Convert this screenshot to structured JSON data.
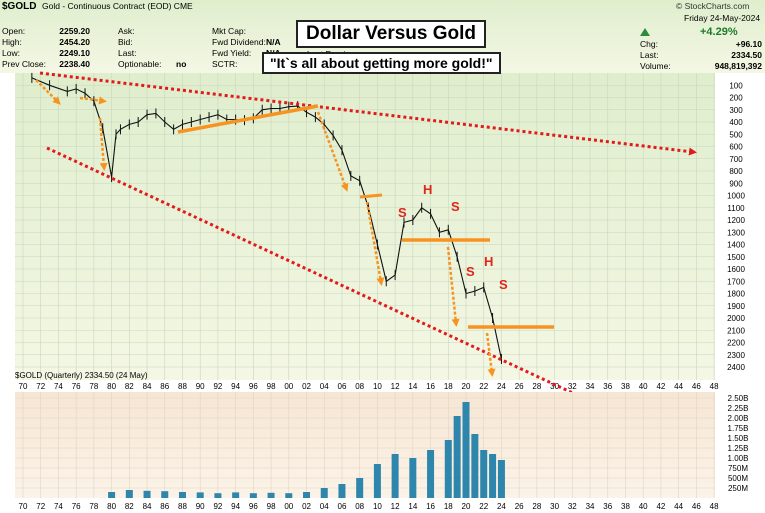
{
  "header": {
    "symbol": "$GOLD",
    "description": "Gold - Continuous Contract (EOD) CME",
    "watermark": "© StockCharts.com",
    "date_line": "Friday 24-May-2024",
    "stats_left": [
      {
        "label": "Open:",
        "value": "2259.20"
      },
      {
        "label": "High:",
        "value": "2454.20"
      },
      {
        "label": "Low:",
        "value": "2249.10"
      },
      {
        "label": "Prev Close:",
        "value": "2238.40"
      }
    ],
    "stats_mid": [
      {
        "label": "Ask:",
        "value": ""
      },
      {
        "label": "Bid:",
        "value": ""
      },
      {
        "label": "Last:",
        "value": ""
      },
      {
        "label": "Optionable:",
        "value": "no"
      }
    ],
    "stats_right": [
      {
        "label": "Mkt Cap:",
        "value": ""
      },
      {
        "label": "Fwd Dividend:",
        "value": "N/A"
      },
      {
        "label": "Fwd Yield:",
        "value": "N/A"
      },
      {
        "label": "SCTR:",
        "value": ""
      }
    ],
    "change_pct": "+4.29%",
    "stats_far": [
      {
        "label": "Chg:",
        "value": "+96.10"
      },
      {
        "label": "Last:",
        "value": "2334.50"
      },
      {
        "label": "Volume:",
        "value": "948,819,392"
      }
    ],
    "partial_label": "Last Earnings:"
  },
  "annotations": {
    "title": "Dollar Versus Gold",
    "quote": "\"It`s all about getting more gold!\"",
    "hs_letters": [
      "S",
      "H",
      "S",
      "S",
      "H",
      "S"
    ]
  },
  "legend": "$GOLD (Quarterly) 2334.50 (24 May)",
  "colors": {
    "price_panel_bg": "#e5f2d2",
    "volume_panel_bg": "#f7e9d6",
    "volume_bar": "#2e86ac",
    "trend_red": "#e11b1b",
    "support_orange": "#f7931e",
    "up_arrow": "#2e8b3a"
  },
  "chart_data": [
    {
      "type": "line",
      "title": "$GOLD (Quarterly) 2334.50 (24 May)",
      "y_axis_inverted": true,
      "y_ticks": [
        100,
        200,
        300,
        400,
        500,
        600,
        700,
        800,
        900,
        1000,
        1100,
        1200,
        1300,
        1400,
        1500,
        1600,
        1700,
        1800,
        1900,
        2000,
        2100,
        2200,
        2300,
        2400
      ],
      "x_ticks": [
        "70",
        "72",
        "74",
        "76",
        "78",
        "80",
        "82",
        "84",
        "86",
        "88",
        "90",
        "92",
        "94",
        "96",
        "98",
        "00",
        "02",
        "04",
        "06",
        "08",
        "10",
        "12",
        "14",
        "16",
        "18",
        "20",
        "22",
        "24",
        "26",
        "28",
        "30",
        "32",
        "34",
        "36",
        "38",
        "40",
        "42",
        "44",
        "46",
        "48"
      ],
      "series": [
        {
          "x": [
            1971,
            1973,
            1975,
            1976,
            1977,
            1978,
            1979,
            1980,
            1980.5,
            1981,
            1982,
            1983,
            1984,
            1985,
            1986,
            1987,
            1988,
            1989,
            1990,
            1991,
            1992,
            1993,
            1994,
            1995,
            1996,
            1997,
            1998,
            1999,
            2000,
            2001,
            2002,
            2003,
            2004,
            2005,
            2006,
            2007,
            2008,
            2009,
            2010,
            2011,
            2012,
            2013,
            2014,
            2015,
            2016,
            2017,
            2018,
            2019,
            2020,
            2021,
            2022,
            2023,
            2024
          ],
          "values": [
            40,
            100,
            150,
            130,
            165,
            230,
            450,
            850,
            500,
            460,
            420,
            400,
            340,
            330,
            400,
            460,
            420,
            400,
            380,
            360,
            340,
            380,
            380,
            385,
            370,
            300,
            290,
            290,
            275,
            270,
            320,
            360,
            420,
            510,
            630,
            840,
            880,
            1100,
            1400,
            1700,
            1650,
            1220,
            1200,
            1100,
            1150,
            1300,
            1280,
            1500,
            1800,
            1780,
            1750,
            2000,
            2334.5
          ]
        }
      ]
    },
    {
      "type": "bar",
      "title": "Volume",
      "y_ticks": [
        "250M",
        "500M",
        "750M",
        "1.00B",
        "1.25B",
        "1.50B",
        "1.75B",
        "2.00B",
        "2.25B",
        "2.50B"
      ],
      "x": [
        1980,
        1982,
        1984,
        1986,
        1988,
        1990,
        1992,
        1994,
        1996,
        1998,
        2000,
        2002,
        2004,
        2006,
        2008,
        2010,
        2012,
        2014,
        2016,
        2018,
        2019,
        2020,
        2021,
        2022,
        2023,
        2024
      ],
      "values": [
        0.15,
        0.2,
        0.18,
        0.17,
        0.15,
        0.14,
        0.12,
        0.14,
        0.12,
        0.13,
        0.12,
        0.15,
        0.25,
        0.35,
        0.5,
        0.85,
        1.1,
        1.0,
        1.2,
        1.45,
        2.05,
        2.4,
        1.6,
        1.2,
        1.1,
        0.95
      ]
    }
  ]
}
